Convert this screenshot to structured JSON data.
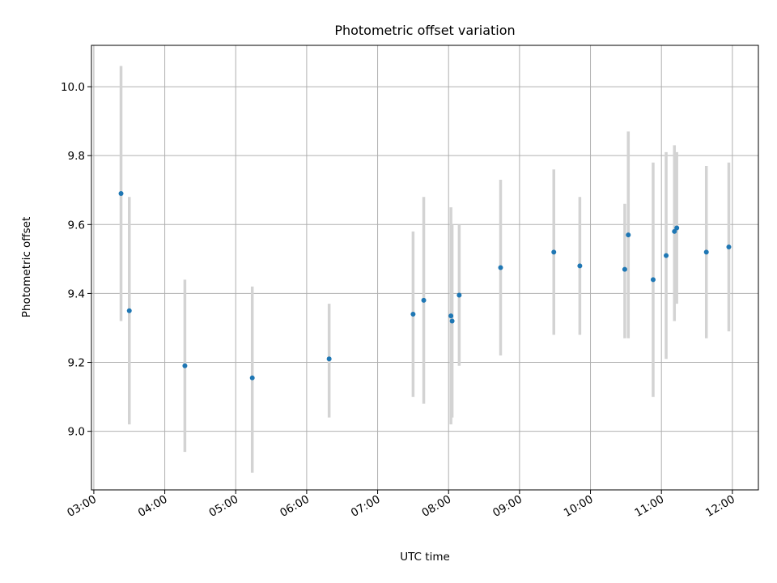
{
  "chart_data": {
    "type": "scatter",
    "title": "Photometric offset variation",
    "xlabel": "UTC time",
    "ylabel": "Photometric offset",
    "x_axis_kind": "time",
    "xlim": [
      "02:58",
      "12:22"
    ],
    "ylim": [
      8.83,
      10.12
    ],
    "x_ticks": [
      "03:00",
      "04:00",
      "05:00",
      "06:00",
      "07:00",
      "08:00",
      "09:00",
      "10:00",
      "11:00",
      "12:00"
    ],
    "y_ticks": [
      9.0,
      9.2,
      9.4,
      9.6,
      9.8,
      10.0
    ],
    "y_tick_labels": [
      "9.0",
      "9.2",
      "9.4",
      "9.6",
      "9.8",
      "10.0"
    ],
    "grid": true,
    "legend": "none",
    "colors": {
      "points": "#1f77b4",
      "error_bars": "#d3d3d3",
      "grid": "#b0b0b0"
    },
    "series": [
      {
        "points": [
          {
            "x": "03:23",
            "y": 9.69,
            "ylow": 9.32,
            "yhigh": 10.06
          },
          {
            "x": "03:30",
            "y": 9.35,
            "ylow": 9.02,
            "yhigh": 9.68
          },
          {
            "x": "04:17",
            "y": 9.19,
            "ylow": 8.94,
            "yhigh": 9.44
          },
          {
            "x": "05:14",
            "y": 9.155,
            "ylow": 8.88,
            "yhigh": 9.42
          },
          {
            "x": "06:19",
            "y": 9.21,
            "ylow": 9.04,
            "yhigh": 9.37
          },
          {
            "x": "07:30",
            "y": 9.34,
            "ylow": 9.1,
            "yhigh": 9.58
          },
          {
            "x": "07:39",
            "y": 9.38,
            "ylow": 9.08,
            "yhigh": 9.68
          },
          {
            "x": "08:02",
            "y": 9.335,
            "ylow": 9.02,
            "yhigh": 9.65
          },
          {
            "x": "08:03",
            "y": 9.32,
            "ylow": 9.04,
            "yhigh": 9.6
          },
          {
            "x": "08:09",
            "y": 9.395,
            "ylow": 9.19,
            "yhigh": 9.6
          },
          {
            "x": "08:44",
            "y": 9.475,
            "ylow": 9.22,
            "yhigh": 9.73
          },
          {
            "x": "09:29",
            "y": 9.52,
            "ylow": 9.28,
            "yhigh": 9.76
          },
          {
            "x": "09:51",
            "y": 9.48,
            "ylow": 9.28,
            "yhigh": 9.68
          },
          {
            "x": "10:29",
            "y": 9.47,
            "ylow": 9.27,
            "yhigh": 9.66
          },
          {
            "x": "10:32",
            "y": 9.57,
            "ylow": 9.27,
            "yhigh": 9.87
          },
          {
            "x": "10:53",
            "y": 9.44,
            "ylow": 9.1,
            "yhigh": 9.78
          },
          {
            "x": "11:04",
            "y": 9.51,
            "ylow": 9.21,
            "yhigh": 9.81
          },
          {
            "x": "11:11",
            "y": 9.58,
            "ylow": 9.32,
            "yhigh": 9.83
          },
          {
            "x": "11:13",
            "y": 9.59,
            "ylow": 9.37,
            "yhigh": 9.81
          },
          {
            "x": "11:38",
            "y": 9.52,
            "ylow": 9.27,
            "yhigh": 9.77
          },
          {
            "x": "11:57",
            "y": 9.535,
            "ylow": 9.29,
            "yhigh": 9.78
          }
        ]
      }
    ]
  }
}
